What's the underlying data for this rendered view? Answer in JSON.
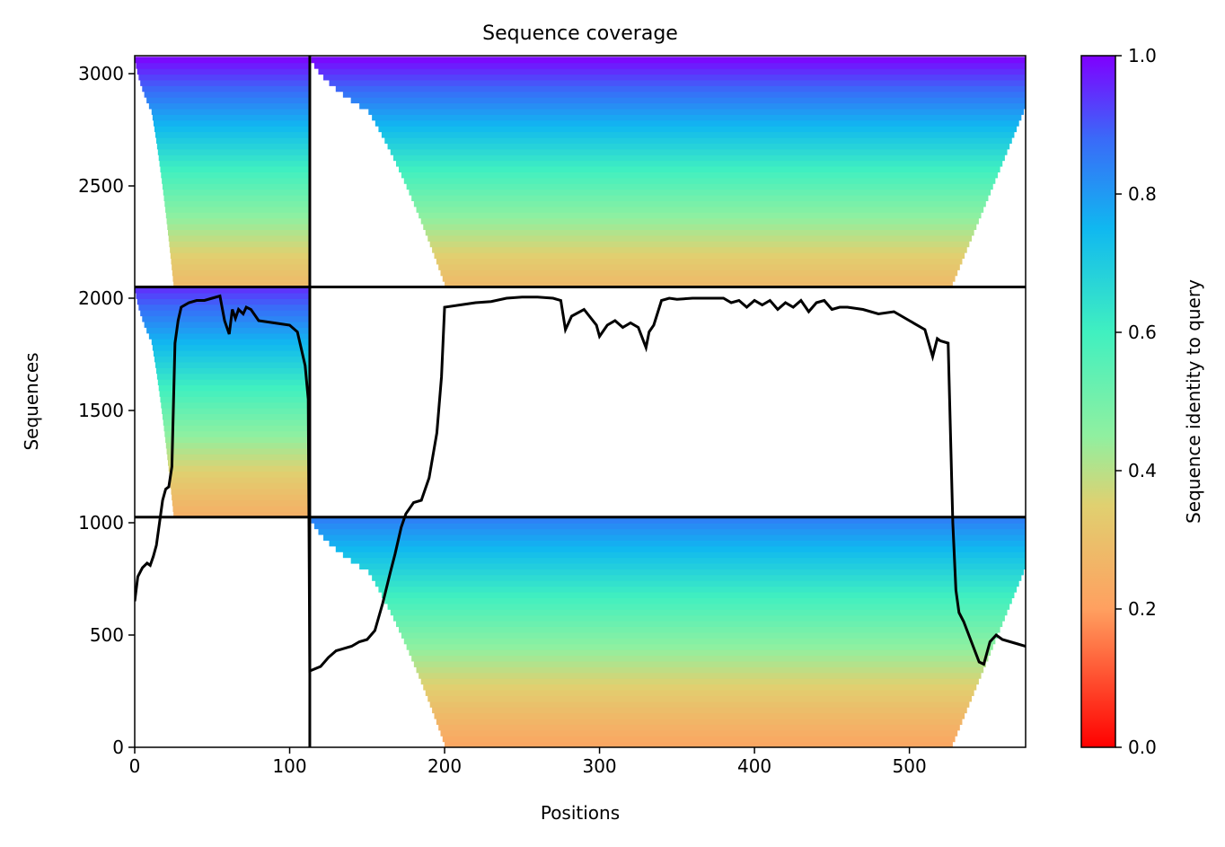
{
  "chart_data": {
    "type": "heatmap",
    "title": "Sequence coverage",
    "xlabel": "Positions",
    "ylabel": "Sequences",
    "xlim": [
      0,
      575
    ],
    "ylim": [
      0,
      3080
    ],
    "xticks": [
      0,
      100,
      200,
      300,
      400,
      500
    ],
    "yticks": [
      0,
      500,
      1000,
      1500,
      2000,
      2500,
      3000
    ],
    "colorbar": {
      "label": "Sequence identity to query",
      "range": [
        0,
        1
      ],
      "ticks": [
        "0.0",
        "0.2",
        "0.4",
        "0.6",
        "0.8",
        "1.0"
      ],
      "colormap": "rainbow"
    },
    "chain_boundaries_x": [
      113
    ],
    "chain_boundaries_y": [
      1025,
      2050
    ],
    "blocks": [
      {
        "name": "chain-1-paired",
        "x": [
          0,
          113
        ],
        "y": [
          2050,
          3075
        ],
        "start_x_bottom": 25,
        "identity_top": 1.0,
        "identity_bottom": 0.28
      },
      {
        "name": "chain-2-paired",
        "x": [
          113,
          575
        ],
        "y": [
          2050,
          3075
        ],
        "start_x_bottom": 200,
        "end_x_bottom": 528,
        "identity_top": 1.0,
        "identity_bottom": 0.28
      },
      {
        "name": "chain-1-unpaired",
        "x": [
          0,
          113
        ],
        "y": [
          1025,
          2050
        ],
        "start_x_bottom": 25,
        "identity_top": 0.95,
        "identity_bottom": 0.25
      },
      {
        "name": "chain-2-unpaired",
        "x": [
          113,
          575
        ],
        "y": [
          0,
          1025
        ],
        "start_x_bottom": 200,
        "end_x_bottom": 528,
        "identity_top": 0.85,
        "identity_bottom": 0.22
      }
    ],
    "coverage_line": {
      "x": [
        0,
        2,
        5,
        8,
        10,
        12,
        14,
        16,
        18,
        20,
        22,
        24,
        26,
        28,
        30,
        35,
        40,
        45,
        50,
        55,
        58,
        61,
        63,
        65,
        67,
        70,
        72,
        75,
        80,
        90,
        100,
        105,
        110,
        112,
        113,
        120,
        125,
        130,
        140,
        145,
        150,
        155,
        160,
        165,
        168,
        172,
        175,
        180,
        185,
        190,
        195,
        198,
        200,
        210,
        220,
        230,
        240,
        250,
        260,
        270,
        275,
        278,
        282,
        290,
        298,
        300,
        305,
        310,
        315,
        320,
        325,
        330,
        332,
        335,
        340,
        345,
        350,
        360,
        370,
        380,
        385,
        390,
        395,
        400,
        405,
        410,
        415,
        420,
        425,
        430,
        435,
        440,
        445,
        450,
        455,
        460,
        470,
        480,
        490,
        500,
        510,
        515,
        518,
        520,
        525,
        528,
        530,
        532,
        535,
        540,
        545,
        548,
        552,
        556,
        560,
        565,
        570,
        575
      ],
      "y": [
        650,
        760,
        800,
        820,
        810,
        850,
        900,
        1000,
        1100,
        1150,
        1160,
        1250,
        1800,
        1900,
        1960,
        1980,
        1990,
        1990,
        2000,
        2010,
        1900,
        1840,
        1950,
        1910,
        1950,
        1930,
        1960,
        1950,
        1900,
        1890,
        1880,
        1850,
        1700,
        1550,
        340,
        360,
        400,
        430,
        450,
        470,
        480,
        520,
        640,
        780,
        860,
        980,
        1040,
        1090,
        1100,
        1200,
        1400,
        1650,
        1960,
        1970,
        1980,
        1985,
        2000,
        2005,
        2005,
        2000,
        1990,
        1860,
        1920,
        1950,
        1880,
        1830,
        1880,
        1900,
        1870,
        1890,
        1870,
        1780,
        1850,
        1880,
        1990,
        2000,
        1995,
        2000,
        2000,
        2000,
        1980,
        1990,
        1960,
        1990,
        1970,
        1990,
        1950,
        1980,
        1960,
        1990,
        1940,
        1980,
        1990,
        1950,
        1960,
        1960,
        1950,
        1930,
        1940,
        1900,
        1860,
        1740,
        1820,
        1810,
        1800,
        1000,
        700,
        600,
        560,
        470,
        380,
        370,
        470,
        500,
        480,
        470,
        460,
        450
      ]
    }
  }
}
